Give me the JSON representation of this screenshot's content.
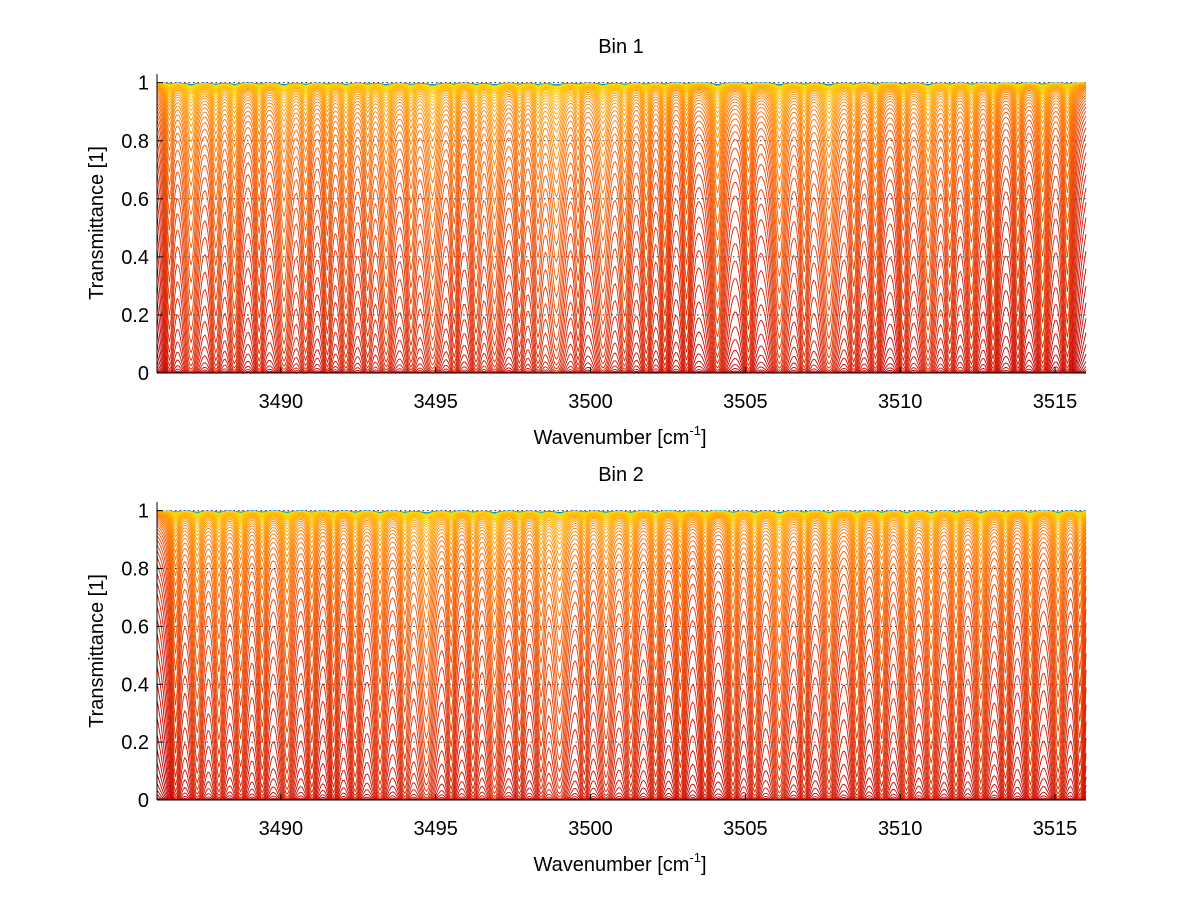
{
  "chart_data": [
    {
      "type": "line",
      "title": "Bin 1",
      "xlabel": "Wavenumber [cm",
      "xlabel_sup": "-1",
      "xlabel_end": "]",
      "ylabel": "Transmittance [1]",
      "xlim": [
        3486,
        3516
      ],
      "ylim": [
        0,
        1.03
      ],
      "xticks": [
        3490,
        3495,
        3500,
        3505,
        3510,
        3515
      ],
      "yticks": [
        0,
        0.2,
        0.4,
        0.6,
        0.8,
        1
      ],
      "grid": "dotted horizontal",
      "series_count": 60,
      "colormap": [
        "#9b0000",
        "#c80000",
        "#e03000",
        "#ff7000",
        "#ffb000",
        "#ffe000",
        "#00c8c8",
        "#0050c8"
      ],
      "absorption_lines": [
        {
          "x": 3486.4,
          "depth": 0.5,
          "width": 0.12
        },
        {
          "x": 3487.1,
          "depth": 0.9,
          "width": 0.18
        },
        {
          "x": 3487.9,
          "depth": 0.7,
          "width": 0.14
        },
        {
          "x": 3488.5,
          "depth": 0.8,
          "width": 0.15
        },
        {
          "x": 3489.3,
          "depth": 0.6,
          "width": 0.13
        },
        {
          "x": 3490.1,
          "depth": 0.9,
          "width": 0.18
        },
        {
          "x": 3490.8,
          "depth": 0.7,
          "width": 0.14
        },
        {
          "x": 3491.5,
          "depth": 0.6,
          "width": 0.12
        },
        {
          "x": 3492.1,
          "depth": 0.8,
          "width": 0.15
        },
        {
          "x": 3492.8,
          "depth": 0.6,
          "width": 0.13
        },
        {
          "x": 3493.4,
          "depth": 0.9,
          "width": 0.17
        },
        {
          "x": 3494.2,
          "depth": 0.7,
          "width": 0.14
        },
        {
          "x": 3494.9,
          "depth": 1.0,
          "width": 0.2
        },
        {
          "x": 3495.6,
          "depth": 0.6,
          "width": 0.12
        },
        {
          "x": 3496.3,
          "depth": 0.7,
          "width": 0.14
        },
        {
          "x": 3496.9,
          "depth": 0.9,
          "width": 0.18
        },
        {
          "x": 3497.7,
          "depth": 0.6,
          "width": 0.13
        },
        {
          "x": 3498.3,
          "depth": 0.7,
          "width": 0.14
        },
        {
          "x": 3498.9,
          "depth": 1.0,
          "width": 0.22
        },
        {
          "x": 3499.6,
          "depth": 0.5,
          "width": 0.12
        },
        {
          "x": 3500.4,
          "depth": 0.8,
          "width": 0.2
        },
        {
          "x": 3501.1,
          "depth": 0.7,
          "width": 0.15
        },
        {
          "x": 3501.8,
          "depth": 0.6,
          "width": 0.13
        },
        {
          "x": 3502.4,
          "depth": 0.6,
          "width": 0.12
        },
        {
          "x": 3503.1,
          "depth": 0.5,
          "width": 0.12
        },
        {
          "x": 3504.1,
          "depth": 1.0,
          "width": 0.16
        },
        {
          "x": 3505.1,
          "depth": 0.6,
          "width": 0.13
        },
        {
          "x": 3506.1,
          "depth": 1.0,
          "width": 0.18
        },
        {
          "x": 3506.9,
          "depth": 0.6,
          "width": 0.13
        },
        {
          "x": 3507.7,
          "depth": 1.0,
          "width": 0.2
        },
        {
          "x": 3508.5,
          "depth": 0.6,
          "width": 0.13
        },
        {
          "x": 3509.2,
          "depth": 0.7,
          "width": 0.14
        },
        {
          "x": 3510.1,
          "depth": 0.6,
          "width": 0.13
        },
        {
          "x": 3510.9,
          "depth": 0.9,
          "width": 0.17
        },
        {
          "x": 3511.6,
          "depth": 0.6,
          "width": 0.13
        },
        {
          "x": 3512.3,
          "depth": 0.7,
          "width": 0.14
        },
        {
          "x": 3513.0,
          "depth": 0.6,
          "width": 0.12
        },
        {
          "x": 3513.8,
          "depth": 0.5,
          "width": 0.12
        },
        {
          "x": 3514.6,
          "depth": 0.7,
          "width": 0.14
        },
        {
          "x": 3515.4,
          "depth": 0.6,
          "width": 0.13
        }
      ]
    },
    {
      "type": "line",
      "title": "Bin 2",
      "xlabel": "Wavenumber [cm",
      "xlabel_sup": "-1",
      "xlabel_end": "]",
      "ylabel": "Transmittance [1]",
      "xlim": [
        3486,
        3516
      ],
      "ylim": [
        0,
        1.03
      ],
      "xticks": [
        3490,
        3495,
        3500,
        3505,
        3510,
        3515
      ],
      "yticks": [
        0,
        0.2,
        0.4,
        0.6,
        0.8,
        1
      ],
      "grid": "dotted horizontal",
      "series_count": 60,
      "colormap": [
        "#9b0000",
        "#c80000",
        "#e03000",
        "#ff7000",
        "#ffb000",
        "#ffe000",
        "#00c8c8",
        "#0050c8"
      ],
      "absorption_lines": [
        {
          "x": 3486.6,
          "depth": 0.6,
          "width": 0.12
        },
        {
          "x": 3487.3,
          "depth": 0.8,
          "width": 0.15
        },
        {
          "x": 3488.0,
          "depth": 0.7,
          "width": 0.14
        },
        {
          "x": 3488.7,
          "depth": 0.7,
          "width": 0.14
        },
        {
          "x": 3489.4,
          "depth": 0.6,
          "width": 0.13
        },
        {
          "x": 3490.2,
          "depth": 0.8,
          "width": 0.16
        },
        {
          "x": 3491.0,
          "depth": 0.6,
          "width": 0.13
        },
        {
          "x": 3491.7,
          "depth": 0.6,
          "width": 0.12
        },
        {
          "x": 3492.4,
          "depth": 0.7,
          "width": 0.14
        },
        {
          "x": 3493.2,
          "depth": 0.8,
          "width": 0.15
        },
        {
          "x": 3494.0,
          "depth": 0.7,
          "width": 0.14
        },
        {
          "x": 3494.7,
          "depth": 1.0,
          "width": 0.2
        },
        {
          "x": 3495.5,
          "depth": 0.6,
          "width": 0.12
        },
        {
          "x": 3496.2,
          "depth": 0.6,
          "width": 0.13
        },
        {
          "x": 3496.9,
          "depth": 0.9,
          "width": 0.17
        },
        {
          "x": 3497.7,
          "depth": 0.6,
          "width": 0.13
        },
        {
          "x": 3498.4,
          "depth": 0.7,
          "width": 0.14
        },
        {
          "x": 3499.0,
          "depth": 0.9,
          "width": 0.2
        },
        {
          "x": 3499.8,
          "depth": 0.5,
          "width": 0.12
        },
        {
          "x": 3500.5,
          "depth": 0.7,
          "width": 0.18
        },
        {
          "x": 3501.3,
          "depth": 0.7,
          "width": 0.15
        },
        {
          "x": 3502.1,
          "depth": 0.7,
          "width": 0.14
        },
        {
          "x": 3502.9,
          "depth": 0.6,
          "width": 0.13
        },
        {
          "x": 3503.7,
          "depth": 0.6,
          "width": 0.13
        },
        {
          "x": 3504.6,
          "depth": 0.7,
          "width": 0.14
        },
        {
          "x": 3505.3,
          "depth": 0.7,
          "width": 0.14
        },
        {
          "x": 3506.1,
          "depth": 0.9,
          "width": 0.17
        },
        {
          "x": 3506.9,
          "depth": 0.6,
          "width": 0.13
        },
        {
          "x": 3507.7,
          "depth": 0.8,
          "width": 0.16
        },
        {
          "x": 3508.6,
          "depth": 0.7,
          "width": 0.14
        },
        {
          "x": 3509.4,
          "depth": 0.7,
          "width": 0.14
        },
        {
          "x": 3510.2,
          "depth": 0.8,
          "width": 0.15
        },
        {
          "x": 3511.0,
          "depth": 0.8,
          "width": 0.15
        },
        {
          "x": 3511.8,
          "depth": 0.7,
          "width": 0.14
        },
        {
          "x": 3512.6,
          "depth": 0.8,
          "width": 0.15
        },
        {
          "x": 3513.4,
          "depth": 0.6,
          "width": 0.13
        },
        {
          "x": 3514.2,
          "depth": 0.7,
          "width": 0.14
        },
        {
          "x": 3515.1,
          "depth": 0.8,
          "width": 0.15
        },
        {
          "x": 3515.8,
          "depth": 0.6,
          "width": 0.12
        }
      ]
    }
  ]
}
